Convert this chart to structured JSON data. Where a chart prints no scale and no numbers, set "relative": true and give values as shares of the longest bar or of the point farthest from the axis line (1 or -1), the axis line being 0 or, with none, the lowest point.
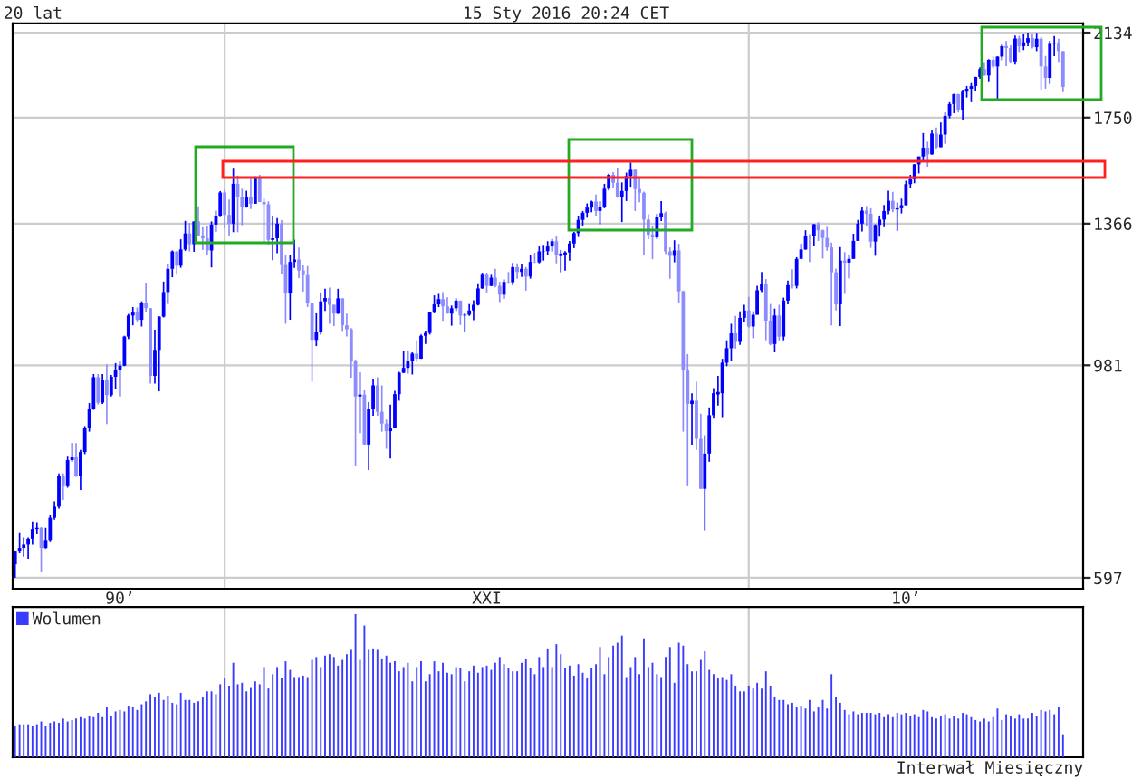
{
  "chart_data": [
    {
      "type": "candlestick",
      "title": "20 lat",
      "annotations": [
        "15 Sty 2016 20:24 CET"
      ],
      "colors": [
        "#0000ff",
        "#0000ff",
        "#0000ff",
        "#0000ff",
        "#0000ff",
        "#0000ff",
        "#8c8cff",
        "#0000ff",
        "#0000ff",
        "#0000ff",
        "#0000ff",
        "#8c8cff",
        "#0000ff",
        "#0000ff",
        "#8c8cff",
        "#0000ff",
        "#0000ff",
        "#0000ff",
        "#0000ff",
        "#8c8cff",
        "#0000ff",
        "#8c8cff",
        "#0000ff",
        "#0000ff",
        "#0000ff",
        "#0000ff",
        "#0000ff",
        "#0000ff",
        "#8c8cff",
        "#0000ff",
        "#8c8cff",
        "#8c8cff",
        "#0000ff",
        "#0000ff",
        "#0000ff",
        "#0000ff",
        "#0000ff",
        "#8c8cff",
        "#0000ff",
        "#0000ff",
        "#8c8cff",
        "#0000ff",
        "#8c8cff",
        "#8c8cff",
        "#8c8cff",
        "#0000ff",
        "#0000ff",
        "#0000ff",
        "#8c8cff",
        "#8c8cff",
        "#0000ff",
        "#8c8cff",
        "#8c8cff",
        "#0000ff",
        "#8c8cff",
        "#0000ff",
        "#8c8cff",
        "#8c8cff",
        "#8c8cff",
        "#0000ff",
        "#0000ff",
        "#8c8cff",
        "#8c8cff",
        "#0000ff",
        "#0000ff",
        "#8c8cff",
        "#8c8cff",
        "#8c8cff",
        "#8c8cff",
        "#0000ff",
        "#0000ff",
        "#0000ff",
        "#8c8cff",
        "#8c8cff",
        "#0000ff",
        "#8c8cff",
        "#8c8cff",
        "#8c8cff",
        "#8c8cff",
        "#0000ff",
        "#8c8cff",
        "#0000ff",
        "#0000ff",
        "#8c8cff",
        "#8c8cff",
        "#8c8cff",
        "#0000ff",
        "#0000ff",
        "#0000ff",
        "#0000ff",
        "#0000ff",
        "#0000ff",
        "#8c8cff",
        "#0000ff",
        "#0000ff",
        "#0000ff",
        "#0000ff",
        "#0000ff",
        "#8c8cff",
        "#8c8cff",
        "#0000ff",
        "#0000ff",
        "#8c8cff",
        "#0000ff",
        "#0000ff",
        "#0000ff",
        "#0000ff",
        "#0000ff",
        "#8c8cff",
        "#0000ff",
        "#8c8cff",
        "#8c8cff",
        "#0000ff",
        "#8c8cff",
        "#0000ff",
        "#8c8cff",
        "#0000ff",
        "#8c8cff",
        "#0000ff",
        "#8c8cff",
        "#0000ff",
        "#0000ff",
        "#0000ff",
        "#0000ff",
        "#8c8cff",
        "#0000ff",
        "#0000ff",
        "#0000ff",
        "#0000ff",
        "#0000ff",
        "#0000ff",
        "#0000ff",
        "#0000ff",
        "#8c8cff",
        "#0000ff",
        "#0000ff",
        "#0000ff",
        "#8c8cff",
        "#8c8cff",
        "#0000ff",
        "#0000ff",
        "#0000ff",
        "#8c8cff",
        "#8c8cff",
        "#8c8cff",
        "#8c8cff",
        "#8c8cff",
        "#0000ff",
        "#0000ff",
        "#8c8cff",
        "#8c8cff",
        "#0000ff",
        "#8c8cff",
        "#8c8cff",
        "#8c8cff",
        "#0000ff",
        "#8c8cff",
        "#8c8cff",
        "#0000ff",
        "#0000ff",
        "#0000ff",
        "#0000ff",
        "#0000ff",
        "#0000ff",
        "#0000ff",
        "#8c8cff",
        "#0000ff",
        "#0000ff",
        "#8c8cff",
        "#0000ff",
        "#0000ff",
        "#0000ff",
        "#8c8cff",
        "#8c8cff",
        "#0000ff",
        "#8c8cff",
        "#0000ff",
        "#0000ff",
        "#8c8cff",
        "#0000ff",
        "#0000ff",
        "#0000ff",
        "#8c8cff",
        "#0000ff",
        "#8c8cff",
        "#8c8cff",
        "#8c8cff",
        "#8c8cff",
        "#8c8cff",
        "#0000ff",
        "#8c8cff",
        "#0000ff",
        "#0000ff",
        "#0000ff",
        "#0000ff",
        "#8c8cff",
        "#8c8cff",
        "#0000ff",
        "#0000ff",
        "#0000ff",
        "#0000ff",
        "#8c8cff",
        "#0000ff",
        "#0000ff",
        "#0000ff",
        "#0000ff",
        "#0000ff",
        "#0000ff",
        "#0000ff",
        "#8c8cff",
        "#0000ff",
        "#8c8cff",
        "#0000ff",
        "#0000ff",
        "#0000ff",
        "#0000ff",
        "#8c8cff",
        "#0000ff",
        "#0000ff",
        "#0000ff",
        "#0000ff",
        "#0000ff",
        "#8c8cff",
        "#0000ff",
        "#8c8cff",
        "#0000ff",
        "#0000ff",
        "#8c8cff",
        "#8c8cff",
        "#0000ff",
        "#8c8cff",
        "#0000ff",
        "#0000ff",
        "#8c8cff",
        "#0000ff",
        "#8c8cff",
        "#8c8cff",
        "#0000ff",
        "#0000ff",
        "#8c8cff",
        "#8c8cff"
      ],
      "log": true,
      "grid": true,
      "xlim": [
        "1995-12-15",
        "2016-05-20"
      ],
      "xticks": [
        {
          "value": "1998-01",
          "label": "90’"
        },
        {
          "value": "2000-01",
          "label": null
        },
        {
          "value": "2005-01",
          "label": "XXI"
        },
        {
          "value": "2010-01",
          "label": null
        },
        {
          "value": "2013-01",
          "label": "10’"
        }
      ],
      "ylim": [
        582,
        2180
      ],
      "yticks": [
        597,
        981,
        1366,
        1750,
        2134
      ],
      "x": [
        "1996-01",
        "1996-02",
        "1996-03",
        "1996-04",
        "1996-05",
        "1996-06",
        "1996-07",
        "1996-08",
        "1996-09",
        "1996-10",
        "1996-11",
        "1996-12",
        "1997-01",
        "1997-02",
        "1997-03",
        "1997-04",
        "1997-05",
        "1997-06",
        "1997-07",
        "1997-08",
        "1997-09",
        "1997-10",
        "1997-11",
        "1997-12",
        "1998-01",
        "1998-02",
        "1998-03",
        "1998-04",
        "1998-05",
        "1998-06",
        "1998-07",
        "1998-08",
        "1998-09",
        "1998-10",
        "1998-11",
        "1998-12",
        "1999-01",
        "1999-02",
        "1999-03",
        "1999-04",
        "1999-05",
        "1999-06",
        "1999-07",
        "1999-08",
        "1999-09",
        "1999-10",
        "1999-11",
        "1999-12",
        "2000-01",
        "2000-02",
        "2000-03",
        "2000-04",
        "2000-05",
        "2000-06",
        "2000-07",
        "2000-08",
        "2000-09",
        "2000-10",
        "2000-11",
        "2000-12",
        "2001-01",
        "2001-02",
        "2001-03",
        "2001-04",
        "2001-05",
        "2001-06",
        "2001-07",
        "2001-08",
        "2001-09",
        "2001-10",
        "2001-11",
        "2001-12",
        "2002-01",
        "2002-02",
        "2002-03",
        "2002-04",
        "2002-05",
        "2002-06",
        "2002-07",
        "2002-08",
        "2002-09",
        "2002-10",
        "2002-11",
        "2002-12",
        "2003-01",
        "2003-02",
        "2003-03",
        "2003-04",
        "2003-05",
        "2003-06",
        "2003-07",
        "2003-08",
        "2003-09",
        "2003-10",
        "2003-11",
        "2003-12",
        "2004-01",
        "2004-02",
        "2004-03",
        "2004-04",
        "2004-05",
        "2004-06",
        "2004-07",
        "2004-08",
        "2004-09",
        "2004-10",
        "2004-11",
        "2004-12",
        "2005-01",
        "2005-02",
        "2005-03",
        "2005-04",
        "2005-05",
        "2005-06",
        "2005-07",
        "2005-08",
        "2005-09",
        "2005-10",
        "2005-11",
        "2005-12",
        "2006-01",
        "2006-02",
        "2006-03",
        "2006-04",
        "2006-05",
        "2006-06",
        "2006-07",
        "2006-08",
        "2006-09",
        "2006-10",
        "2006-11",
        "2006-12",
        "2007-01",
        "2007-02",
        "2007-03",
        "2007-04",
        "2007-05",
        "2007-06",
        "2007-07",
        "2007-08",
        "2007-09",
        "2007-10",
        "2007-11",
        "2007-12",
        "2008-01",
        "2008-02",
        "2008-03",
        "2008-04",
        "2008-05",
        "2008-06",
        "2008-07",
        "2008-08",
        "2008-09",
        "2008-10",
        "2008-11",
        "2008-12",
        "2009-01",
        "2009-02",
        "2009-03",
        "2009-04",
        "2009-05",
        "2009-06",
        "2009-07",
        "2009-08",
        "2009-09",
        "2009-10",
        "2009-11",
        "2009-12",
        "2010-01",
        "2010-02",
        "2010-03",
        "2010-04",
        "2010-05",
        "2010-06",
        "2010-07",
        "2010-08",
        "2010-09",
        "2010-10",
        "2010-11",
        "2010-12",
        "2011-01",
        "2011-02",
        "2011-03",
        "2011-04",
        "2011-05",
        "2011-06",
        "2011-07",
        "2011-08",
        "2011-09",
        "2011-10",
        "2011-11",
        "2011-12",
        "2012-01",
        "2012-02",
        "2012-03",
        "2012-04",
        "2012-05",
        "2012-06",
        "2012-07",
        "2012-08",
        "2012-09",
        "2012-10",
        "2012-11",
        "2012-12",
        "2013-01",
        "2013-02",
        "2013-03",
        "2013-04",
        "2013-05",
        "2013-06",
        "2013-07",
        "2013-08",
        "2013-09",
        "2013-10",
        "2013-11",
        "2013-12",
        "2014-01",
        "2014-02",
        "2014-03",
        "2014-04",
        "2014-05",
        "2014-06",
        "2014-07",
        "2014-08",
        "2014-09",
        "2014-10",
        "2014-11",
        "2014-12",
        "2015-01",
        "2015-02",
        "2015-03",
        "2015-04",
        "2015-05",
        "2015-06",
        "2015-07",
        "2015-08",
        "2015-09",
        "2015-10",
        "2015-11",
        "2015-12",
        "2016-01"
      ],
      "ohlc": [
        [
          616,
          636,
          597,
          636
        ],
        [
          636,
          664,
          633,
          640
        ],
        [
          640,
          656,
          627,
          645
        ],
        [
          645,
          656,
          624,
          654
        ],
        [
          654,
          681,
          645,
          669
        ],
        [
          669,
          680,
          662,
          671
        ],
        [
          671,
          672,
          605,
          640
        ],
        [
          640,
          671,
          639,
          652
        ],
        [
          652,
          691,
          650,
          687
        ],
        [
          687,
          714,
          684,
          705
        ],
        [
          705,
          762,
          702,
          757
        ],
        [
          757,
          762,
          716,
          741
        ],
        [
          741,
          794,
          737,
          786
        ],
        [
          786,
          818,
          783,
          791
        ],
        [
          791,
          818,
          756,
          757
        ],
        [
          757,
          805,
          733,
          801
        ],
        [
          801,
          851,
          797,
          848
        ],
        [
          848,
          898,
          840,
          885
        ],
        [
          885,
          961,
          884,
          954
        ],
        [
          954,
          961,
          895,
          899
        ],
        [
          899,
          961,
          896,
          947
        ],
        [
          947,
          983,
          855,
          915
        ],
        [
          915,
          959,
          912,
          955
        ],
        [
          955,
          986,
          929,
          970
        ],
        [
          970,
          992,
          912,
          980
        ],
        [
          980,
          1051,
          979,
          1049
        ],
        [
          1049,
          1106,
          1043,
          1102
        ],
        [
          1102,
          1124,
          1077,
          1112
        ],
        [
          1112,
          1123,
          1087,
          1091
        ],
        [
          1091,
          1139,
          1074,
          1134
        ],
        [
          1134,
          1190,
          1112,
          1121
        ],
        [
          1121,
          1121,
          940,
          957
        ],
        [
          957,
          1066,
          940,
          1017
        ],
        [
          1017,
          1100,
          923,
          1099
        ],
        [
          1099,
          1193,
          1097,
          1164
        ],
        [
          1164,
          1244,
          1132,
          1229
        ],
        [
          1229,
          1283,
          1205,
          1280
        ],
        [
          1280,
          1282,
          1212,
          1238
        ],
        [
          1238,
          1317,
          1232,
          1286
        ],
        [
          1286,
          1375,
          1282,
          1335
        ],
        [
          1335,
          1368,
          1280,
          1302
        ],
        [
          1302,
          1373,
          1279,
          1373
        ],
        [
          1373,
          1422,
          1327,
          1329
        ],
        [
          1329,
          1355,
          1284,
          1320
        ],
        [
          1320,
          1359,
          1268,
          1283
        ],
        [
          1283,
          1373,
          1233,
          1363
        ],
        [
          1363,
          1408,
          1340,
          1389
        ],
        [
          1389,
          1474,
          1387,
          1469
        ],
        [
          1469,
          1479,
          1350,
          1394
        ],
        [
          1394,
          1445,
          1326,
          1366
        ],
        [
          1366,
          1553,
          1339,
          1499
        ],
        [
          1499,
          1528,
          1339,
          1452
        ],
        [
          1452,
          1482,
          1361,
          1421
        ],
        [
          1421,
          1475,
          1418,
          1455
        ],
        [
          1455,
          1517,
          1413,
          1431
        ],
        [
          1431,
          1525,
          1431,
          1518
        ],
        [
          1518,
          1531,
          1436,
          1437
        ],
        [
          1437,
          1449,
          1305,
          1429
        ],
        [
          1429,
          1439,
          1299,
          1315
        ],
        [
          1315,
          1390,
          1254,
          1320
        ],
        [
          1320,
          1384,
          1275,
          1366
        ],
        [
          1366,
          1377,
          1215,
          1240
        ],
        [
          1240,
          1268,
          1081,
          1160
        ],
        [
          1160,
          1269,
          1091,
          1249
        ],
        [
          1249,
          1316,
          1232,
          1256
        ],
        [
          1256,
          1292,
          1203,
          1224
        ],
        [
          1224,
          1239,
          1165,
          1211
        ],
        [
          1211,
          1237,
          1124,
          1134
        ],
        [
          1134,
          1135,
          944,
          1041
        ],
        [
          1041,
          1110,
          1026,
          1060
        ],
        [
          1060,
          1163,
          1054,
          1139
        ],
        [
          1139,
          1173,
          1114,
          1148
        ],
        [
          1148,
          1176,
          1081,
          1130
        ],
        [
          1130,
          1130,
          1075,
          1107
        ],
        [
          1107,
          1173,
          1106,
          1147
        ],
        [
          1147,
          1147,
          1063,
          1077
        ],
        [
          1077,
          1107,
          1049,
          1067
        ],
        [
          1067,
          1070,
          953,
          990
        ],
        [
          990,
          994,
          775,
          912
        ],
        [
          912,
          965,
          837,
          916
        ],
        [
          916,
          925,
          815,
          815
        ],
        [
          815,
          900,
          768,
          886
        ],
        [
          886,
          951,
          872,
          936
        ],
        [
          936,
          954,
          872,
          880
        ],
        [
          880,
          936,
          840,
          856
        ],
        [
          856,
          864,
          807,
          841
        ],
        [
          841,
          895,
          789,
          848
        ],
        [
          848,
          924,
          847,
          917
        ],
        [
          917,
          966,
          903,
          964
        ],
        [
          964,
          1015,
          963,
          975
        ],
        [
          975,
          1015,
          962,
          990
        ],
        [
          990,
          1011,
          960,
          1008
        ],
        [
          1008,
          1040,
          989,
          996
        ],
        [
          996,
          1054,
          996,
          1051
        ],
        [
          1051,
          1064,
          1031,
          1058
        ],
        [
          1058,
          1112,
          1054,
          1112
        ],
        [
          1112,
          1155,
          1110,
          1131
        ],
        [
          1131,
          1159,
          1124,
          1145
        ],
        [
          1145,
          1164,
          1088,
          1126
        ],
        [
          1126,
          1150,
          1107,
          1107
        ],
        [
          1107,
          1128,
          1076,
          1121
        ],
        [
          1121,
          1147,
          1114,
          1141
        ],
        [
          1141,
          1141,
          1078,
          1102
        ],
        [
          1102,
          1109,
          1060,
          1104
        ],
        [
          1104,
          1132,
          1101,
          1115
        ],
        [
          1115,
          1142,
          1090,
          1130
        ],
        [
          1130,
          1188,
          1128,
          1174
        ],
        [
          1174,
          1218,
          1173,
          1212
        ],
        [
          1212,
          1218,
          1163,
          1181
        ],
        [
          1181,
          1212,
          1180,
          1204
        ],
        [
          1204,
          1229,
          1177,
          1181
        ],
        [
          1181,
          1192,
          1137,
          1157
        ],
        [
          1157,
          1199,
          1146,
          1192
        ],
        [
          1192,
          1220,
          1189,
          1191
        ],
        [
          1191,
          1246,
          1183,
          1234
        ],
        [
          1234,
          1245,
          1201,
          1220
        ],
        [
          1220,
          1243,
          1206,
          1229
        ],
        [
          1229,
          1234,
          1168,
          1207
        ],
        [
          1207,
          1270,
          1201,
          1249
        ],
        [
          1249,
          1276,
          1246,
          1248
        ],
        [
          1248,
          1295,
          1245,
          1280
        ],
        [
          1280,
          1297,
          1253,
          1281
        ],
        [
          1281,
          1311,
          1268,
          1295
        ],
        [
          1295,
          1318,
          1280,
          1311
        ],
        [
          1311,
          1326,
          1245,
          1270
        ],
        [
          1270,
          1284,
          1219,
          1270
        ],
        [
          1270,
          1281,
          1224,
          1277
        ],
        [
          1277,
          1312,
          1253,
          1304
        ],
        [
          1304,
          1340,
          1290,
          1336
        ],
        [
          1336,
          1389,
          1324,
          1378
        ],
        [
          1378,
          1407,
          1360,
          1401
        ],
        [
          1401,
          1432,
          1385,
          1418
        ],
        [
          1418,
          1441,
          1403,
          1438
        ],
        [
          1438,
          1462,
          1389,
          1407
        ],
        [
          1407,
          1439,
          1364,
          1421
        ],
        [
          1421,
          1499,
          1416,
          1482
        ],
        [
          1482,
          1535,
          1476,
          1531
        ],
        [
          1531,
          1541,
          1484,
          1503
        ],
        [
          1503,
          1556,
          1451,
          1455
        ],
        [
          1455,
          1504,
          1371,
          1474
        ],
        [
          1474,
          1539,
          1440,
          1527
        ],
        [
          1527,
          1576,
          1489,
          1549
        ],
        [
          1549,
          1550,
          1407,
          1481
        ],
        [
          1481,
          1524,
          1436,
          1468
        ],
        [
          1468,
          1472,
          1271,
          1379
        ],
        [
          1379,
          1396,
          1317,
          1331
        ],
        [
          1331,
          1360,
          1257,
          1323
        ],
        [
          1323,
          1397,
          1318,
          1386
        ],
        [
          1386,
          1440,
          1374,
          1400
        ],
        [
          1400,
          1405,
          1272,
          1280
        ],
        [
          1280,
          1292,
          1201,
          1267
        ],
        [
          1267,
          1314,
          1248,
          1283
        ],
        [
          1283,
          1303,
          1134,
          1166
        ],
        [
          1166,
          1168,
          840,
          969
        ],
        [
          969,
          1007,
          741,
          896
        ],
        [
          896,
          919,
          815,
          903
        ],
        [
          903,
          944,
          805,
          826
        ],
        [
          826,
          876,
          735,
          735
        ],
        [
          735,
          833,
          667,
          798
        ],
        [
          798,
          889,
          783,
          873
        ],
        [
          873,
          930,
          866,
          919
        ],
        [
          919,
          957,
          893,
          919
        ],
        [
          919,
          996,
          869,
          987
        ],
        [
          987,
          1040,
          979,
          1021
        ],
        [
          1021,
          1081,
          992,
          1057
        ],
        [
          1057,
          1101,
          1020,
          1036
        ],
        [
          1036,
          1113,
          1029,
          1096
        ],
        [
          1096,
          1130,
          1086,
          1115
        ],
        [
          1115,
          1151,
          1071,
          1074
        ],
        [
          1074,
          1113,
          1045,
          1104
        ],
        [
          1104,
          1181,
          1104,
          1169
        ],
        [
          1169,
          1220,
          1164,
          1187
        ],
        [
          1187,
          1200,
          1040,
          1089
        ],
        [
          1089,
          1132,
          1028,
          1031
        ],
        [
          1031,
          1120,
          1011,
          1102
        ],
        [
          1102,
          1130,
          1040,
          1049
        ],
        [
          1049,
          1149,
          1040,
          1141
        ],
        [
          1141,
          1196,
          1131,
          1183
        ],
        [
          1183,
          1228,
          1174,
          1181
        ],
        [
          1181,
          1263,
          1174,
          1258
        ],
        [
          1258,
          1303,
          1257,
          1286
        ],
        [
          1286,
          1345,
          1285,
          1327
        ],
        [
          1327,
          1333,
          1249,
          1326
        ],
        [
          1326,
          1365,
          1295,
          1364
        ],
        [
          1364,
          1371,
          1312,
          1345
        ],
        [
          1345,
          1347,
          1259,
          1321
        ],
        [
          1321,
          1356,
          1282,
          1292
        ],
        [
          1292,
          1307,
          1077,
          1219
        ],
        [
          1219,
          1230,
          1115,
          1131
        ],
        [
          1131,
          1293,
          1075,
          1253
        ],
        [
          1253,
          1278,
          1159,
          1247
        ],
        [
          1247,
          1270,
          1202,
          1258
        ],
        [
          1258,
          1334,
          1258,
          1312
        ],
        [
          1312,
          1378,
          1312,
          1366
        ],
        [
          1366,
          1420,
          1341,
          1408
        ],
        [
          1408,
          1423,
          1358,
          1398
        ],
        [
          1398,
          1416,
          1291,
          1310
        ],
        [
          1310,
          1364,
          1267,
          1362
        ],
        [
          1362,
          1392,
          1325,
          1379
        ],
        [
          1379,
          1427,
          1355,
          1407
        ],
        [
          1407,
          1475,
          1396,
          1441
        ],
        [
          1441,
          1471,
          1403,
          1412
        ],
        [
          1412,
          1435,
          1343,
          1416
        ],
        [
          1416,
          1448,
          1399,
          1426
        ],
        [
          1426,
          1510,
          1426,
          1498
        ],
        [
          1498,
          1531,
          1486,
          1515
        ],
        [
          1515,
          1570,
          1501,
          1569
        ],
        [
          1569,
          1598,
          1536,
          1598
        ],
        [
          1598,
          1688,
          1582,
          1631
        ],
        [
          1631,
          1654,
          1560,
          1606
        ],
        [
          1606,
          1698,
          1605,
          1686
        ],
        [
          1686,
          1710,
          1627,
          1633
        ],
        [
          1633,
          1730,
          1633,
          1682
        ],
        [
          1682,
          1772,
          1646,
          1757
        ],
        [
          1757,
          1814,
          1747,
          1806
        ],
        [
          1806,
          1850,
          1768,
          1848
        ],
        [
          1848,
          1850,
          1771,
          1783
        ],
        [
          1783,
          1868,
          1738,
          1859
        ],
        [
          1859,
          1884,
          1834,
          1872
        ],
        [
          1872,
          1897,
          1814,
          1884
        ],
        [
          1884,
          1925,
          1860,
          1924
        ],
        [
          1924,
          1968,
          1916,
          1960
        ],
        [
          1960,
          1992,
          1930,
          1931
        ],
        [
          1931,
          2006,
          1905,
          2003
        ],
        [
          2003,
          2019,
          1964,
          1972
        ],
        [
          1972,
          2019,
          1821,
          2018
        ],
        [
          2018,
          2076,
          2001,
          2068
        ],
        [
          2068,
          2093,
          1973,
          2059
        ],
        [
          2059,
          2072,
          1988,
          1995
        ],
        [
          1995,
          2120,
          1981,
          2105
        ],
        [
          2105,
          2118,
          2040,
          2068
        ],
        [
          2068,
          2126,
          2049,
          2086
        ],
        [
          2086,
          2134,
          2068,
          2107
        ],
        [
          2107,
          2130,
          2057,
          2063
        ],
        [
          2063,
          2133,
          2044,
          2104
        ],
        [
          2104,
          2113,
          1867,
          1972
        ],
        [
          1972,
          2021,
          1872,
          1920
        ],
        [
          1920,
          2094,
          1893,
          2079
        ],
        [
          2079,
          2117,
          2020,
          2080
        ],
        [
          2080,
          2104,
          1993,
          2044
        ],
        [
          2044,
          2044,
          1857,
          1880
        ]
      ]
    },
    {
      "type": "bar",
      "relative": true,
      "legend": "top left",
      "grid": "x",
      "tick_labels": false,
      "annotations": [
        "Interwał Miesięczny"
      ],
      "xlim": [
        "1995-12-15",
        "2016-05-20"
      ],
      "xticks": [
        {
          "value": "2000-01",
          "label": null
        },
        {
          "value": "2010-01",
          "label": null
        }
      ],
      "x": [
        "1996-01",
        "1996-02",
        "1996-03",
        "1996-04",
        "1996-05",
        "1996-06",
        "1996-07",
        "1996-08",
        "1996-09",
        "1996-10",
        "1996-11",
        "1996-12",
        "1997-01",
        "1997-02",
        "1997-03",
        "1997-04",
        "1997-05",
        "1997-06",
        "1997-07",
        "1997-08",
        "1997-09",
        "1997-10",
        "1997-11",
        "1997-12",
        "1998-01",
        "1998-02",
        "1998-03",
        "1998-04",
        "1998-05",
        "1998-06",
        "1998-07",
        "1998-08",
        "1998-09",
        "1998-10",
        "1998-11",
        "1998-12",
        "1999-01",
        "1999-02",
        "1999-03",
        "1999-04",
        "1999-05",
        "1999-06",
        "1999-07",
        "1999-08",
        "1999-09",
        "1999-10",
        "1999-11",
        "1999-12",
        "2000-01",
        "2000-02",
        "2000-03",
        "2000-04",
        "2000-05",
        "2000-06",
        "2000-07",
        "2000-08",
        "2000-09",
        "2000-10",
        "2000-11",
        "2000-12",
        "2001-01",
        "2001-02",
        "2001-03",
        "2001-04",
        "2001-05",
        "2001-06",
        "2001-07",
        "2001-08",
        "2001-09",
        "2001-10",
        "2001-11",
        "2001-12",
        "2002-01",
        "2002-02",
        "2002-03",
        "2002-04",
        "2002-05",
        "2002-06",
        "2002-07",
        "2002-08",
        "2002-09",
        "2002-10",
        "2002-11",
        "2002-12",
        "2003-01",
        "2003-02",
        "2003-03",
        "2003-04",
        "2003-05",
        "2003-06",
        "2003-07",
        "2003-08",
        "2003-09",
        "2003-10",
        "2003-11",
        "2003-12",
        "2004-01",
        "2004-02",
        "2004-03",
        "2004-04",
        "2004-05",
        "2004-06",
        "2004-07",
        "2004-08",
        "2004-09",
        "2004-10",
        "2004-11",
        "2004-12",
        "2005-01",
        "2005-02",
        "2005-03",
        "2005-04",
        "2005-05",
        "2005-06",
        "2005-07",
        "2005-08",
        "2005-09",
        "2005-10",
        "2005-11",
        "2005-12",
        "2006-01",
        "2006-02",
        "2006-03",
        "2006-04",
        "2006-05",
        "2006-06",
        "2006-07",
        "2006-08",
        "2006-09",
        "2006-10",
        "2006-11",
        "2006-12",
        "2007-01",
        "2007-02",
        "2007-03",
        "2007-04",
        "2007-05",
        "2007-06",
        "2007-07",
        "2007-08",
        "2007-09",
        "2007-10",
        "2007-11",
        "2007-12",
        "2008-01",
        "2008-02",
        "2008-03",
        "2008-04",
        "2008-05",
        "2008-06",
        "2008-07",
        "2008-08",
        "2008-09",
        "2008-10",
        "2008-11",
        "2008-12",
        "2009-01",
        "2009-02",
        "2009-03",
        "2009-04",
        "2009-05",
        "2009-06",
        "2009-07",
        "2009-08",
        "2009-09",
        "2009-10",
        "2009-11",
        "2009-12",
        "2010-01",
        "2010-02",
        "2010-03",
        "2010-04",
        "2010-05",
        "2010-06",
        "2010-07",
        "2010-08",
        "2010-09",
        "2010-10",
        "2010-11",
        "2010-12",
        "2011-01",
        "2011-02",
        "2011-03",
        "2011-04",
        "2011-05",
        "2011-06",
        "2011-07",
        "2011-08",
        "2011-09",
        "2011-10",
        "2011-11",
        "2011-12",
        "2012-01",
        "2012-02",
        "2012-03",
        "2012-04",
        "2012-05",
        "2012-06",
        "2012-07",
        "2012-08",
        "2012-09",
        "2012-10",
        "2012-11",
        "2012-12",
        "2013-01",
        "2013-02",
        "2013-03",
        "2013-04",
        "2013-05",
        "2013-06",
        "2013-07",
        "2013-08",
        "2013-09",
        "2013-10",
        "2013-11",
        "2013-12",
        "2014-01",
        "2014-02",
        "2014-03",
        "2014-04",
        "2014-05",
        "2014-06",
        "2014-07",
        "2014-08",
        "2014-09",
        "2014-10",
        "2014-11",
        "2014-12",
        "2015-01",
        "2015-02",
        "2015-03",
        "2015-04",
        "2015-05",
        "2015-06",
        "2015-07",
        "2015-08",
        "2015-09",
        "2015-10",
        "2015-11",
        "2015-12",
        "2016-01"
      ],
      "series": [
        {
          "name": "Wolumen",
          "color": "#3b3bff",
          "values": [
            0.22,
            0.23,
            0.23,
            0.23,
            0.22,
            0.23,
            0.25,
            0.22,
            0.24,
            0.25,
            0.24,
            0.27,
            0.25,
            0.26,
            0.27,
            0.28,
            0.27,
            0.29,
            0.28,
            0.31,
            0.28,
            0.35,
            0.29,
            0.32,
            0.33,
            0.32,
            0.36,
            0.35,
            0.33,
            0.37,
            0.39,
            0.44,
            0.42,
            0.45,
            0.4,
            0.43,
            0.38,
            0.37,
            0.45,
            0.4,
            0.4,
            0.38,
            0.39,
            0.42,
            0.46,
            0.46,
            0.44,
            0.51,
            0.55,
            0.5,
            0.66,
            0.51,
            0.52,
            0.46,
            0.49,
            0.53,
            0.51,
            0.63,
            0.48,
            0.58,
            0.63,
            0.55,
            0.67,
            0.61,
            0.56,
            0.56,
            0.57,
            0.56,
            0.68,
            0.7,
            0.63,
            0.71,
            0.72,
            0.7,
            0.64,
            0.68,
            0.72,
            0.75,
            1.0,
            0.68,
            0.92,
            0.75,
            0.76,
            0.75,
            0.69,
            0.71,
            0.66,
            0.67,
            0.6,
            0.63,
            0.66,
            0.53,
            0.63,
            0.67,
            0.53,
            0.58,
            0.67,
            0.6,
            0.66,
            0.59,
            0.58,
            0.63,
            0.62,
            0.53,
            0.6,
            0.64,
            0.59,
            0.63,
            0.64,
            0.61,
            0.66,
            0.7,
            0.65,
            0.62,
            0.6,
            0.6,
            0.66,
            0.69,
            0.62,
            0.58,
            0.7,
            0.63,
            0.76,
            0.63,
            0.79,
            0.72,
            0.62,
            0.64,
            0.57,
            0.65,
            0.59,
            0.55,
            0.62,
            0.65,
            0.77,
            0.58,
            0.7,
            0.78,
            0.8,
            0.85,
            0.56,
            0.63,
            0.7,
            0.58,
            0.83,
            0.63,
            0.66,
            0.58,
            0.56,
            0.7,
            0.77,
            0.52,
            0.8,
            0.78,
            0.65,
            0.6,
            0.6,
            0.68,
            0.74,
            0.61,
            0.58,
            0.55,
            0.56,
            0.54,
            0.58,
            0.5,
            0.46,
            0.46,
            0.5,
            0.48,
            0.52,
            0.48,
            0.6,
            0.5,
            0.42,
            0.4,
            0.4,
            0.37,
            0.38,
            0.35,
            0.36,
            0.34,
            0.4,
            0.32,
            0.35,
            0.4,
            0.34,
            0.58,
            0.42,
            0.38,
            0.33,
            0.3,
            0.32,
            0.3,
            0.31,
            0.31,
            0.31,
            0.3,
            0.31,
            0.28,
            0.3,
            0.28,
            0.31,
            0.3,
            0.31,
            0.29,
            0.3,
            0.28,
            0.33,
            0.32,
            0.28,
            0.27,
            0.29,
            0.3,
            0.27,
            0.29,
            0.27,
            0.31,
            0.3,
            0.28,
            0.26,
            0.25,
            0.27,
            0.25,
            0.28,
            0.34,
            0.26,
            0.3,
            0.29,
            0.27,
            0.3,
            0.27,
            0.27,
            0.31,
            0.29,
            0.33,
            0.32,
            0.33,
            0.3,
            0.35,
            0.16
          ]
        }
      ]
    }
  ]
}
